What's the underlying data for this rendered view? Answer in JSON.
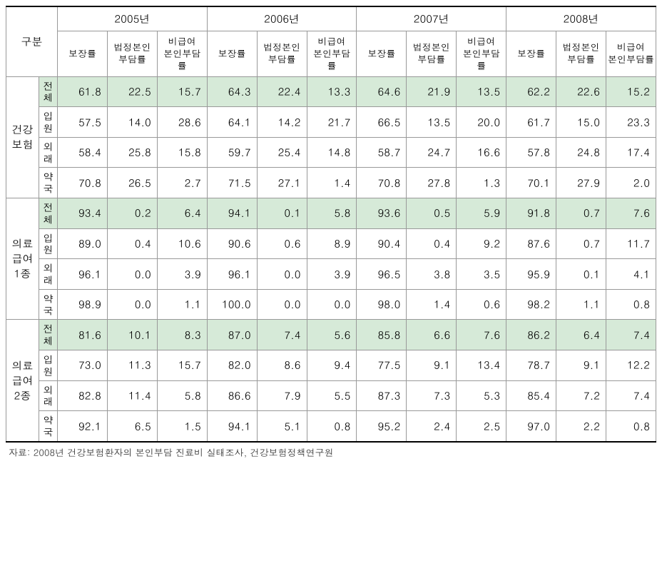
{
  "table": {
    "corner_label": "구분",
    "years": [
      "2005년",
      "2006년",
      "2007년",
      "2008년"
    ],
    "sub_headers": [
      "보장률",
      "법정본인\n부담률",
      "비급여\n본인부담률"
    ],
    "groups": [
      {
        "name": "건강\n보험",
        "rows": [
          {
            "label": "전\n체",
            "highlight": true,
            "values": [
              61.8,
              22.5,
              15.7,
              64.3,
              22.4,
              13.3,
              64.6,
              21.9,
              13.5,
              62.2,
              22.6,
              15.2
            ]
          },
          {
            "label": "입\n원",
            "highlight": false,
            "values": [
              57.5,
              14.0,
              28.6,
              64.1,
              14.2,
              21.7,
              66.5,
              13.5,
              20.0,
              61.7,
              15.0,
              23.3
            ]
          },
          {
            "label": "외\n래",
            "highlight": false,
            "values": [
              58.4,
              25.8,
              15.8,
              59.7,
              25.4,
              14.8,
              58.7,
              24.7,
              16.6,
              57.8,
              24.8,
              17.4
            ]
          },
          {
            "label": "약\n국",
            "highlight": false,
            "values": [
              70.8,
              26.5,
              2.7,
              71.5,
              27.1,
              1.4,
              70.8,
              27.8,
              1.3,
              70.1,
              27.9,
              2.0
            ]
          }
        ]
      },
      {
        "name": "의료\n급여\n1종",
        "rows": [
          {
            "label": "전\n체",
            "highlight": true,
            "values": [
              93.4,
              0.2,
              6.4,
              94.1,
              0.1,
              5.8,
              93.6,
              0.5,
              5.9,
              91.8,
              0.7,
              7.6
            ]
          },
          {
            "label": "입\n원",
            "highlight": false,
            "values": [
              89.0,
              0.4,
              10.6,
              90.6,
              0.6,
              8.9,
              90.4,
              0.4,
              9.2,
              87.6,
              0.7,
              11.7
            ]
          },
          {
            "label": "외\n래",
            "highlight": false,
            "values": [
              96.1,
              0.0,
              3.9,
              96.1,
              0.0,
              3.9,
              96.5,
              3.8,
              3.5,
              95.9,
              0.1,
              4.1
            ]
          },
          {
            "label": "약\n국",
            "highlight": false,
            "values": [
              98.9,
              0.0,
              1.1,
              100.0,
              0.0,
              0.0,
              98.0,
              1.4,
              0.6,
              98.2,
              1.1,
              0.8
            ]
          }
        ]
      },
      {
        "name": "의료\n급여\n2종",
        "rows": [
          {
            "label": "전\n체",
            "highlight": true,
            "values": [
              81.6,
              10.1,
              8.3,
              87.0,
              7.4,
              5.6,
              85.8,
              6.6,
              7.6,
              86.2,
              6.4,
              7.4
            ]
          },
          {
            "label": "입\n원",
            "highlight": false,
            "values": [
              73.0,
              11.3,
              15.7,
              82.0,
              8.6,
              9.4,
              77.5,
              9.1,
              13.4,
              78.7,
              9.1,
              12.2
            ]
          },
          {
            "label": "외\n래",
            "highlight": false,
            "values": [
              82.8,
              11.4,
              5.8,
              86.6,
              7.9,
              5.5,
              87.3,
              7.3,
              5.3,
              85.4,
              7.2,
              7.4
            ]
          },
          {
            "label": "약\n국",
            "highlight": false,
            "values": [
              92.1,
              6.5,
              1.5,
              94.1,
              5.1,
              0.8,
              95.2,
              2.4,
              2.5,
              97.0,
              2.2,
              0.8
            ]
          }
        ]
      }
    ],
    "colors": {
      "highlight_bg": "#d6ead8",
      "border": "#999999",
      "border_strong": "#000000",
      "text": "#000000",
      "bg": "#ffffff"
    },
    "fontsize_pt": 15,
    "source_fontsize_pt": 13
  },
  "source_note": "자료: 2008년 건강보험환자의 본인부담 진료비 실태조사, 건강보험정책연구원"
}
